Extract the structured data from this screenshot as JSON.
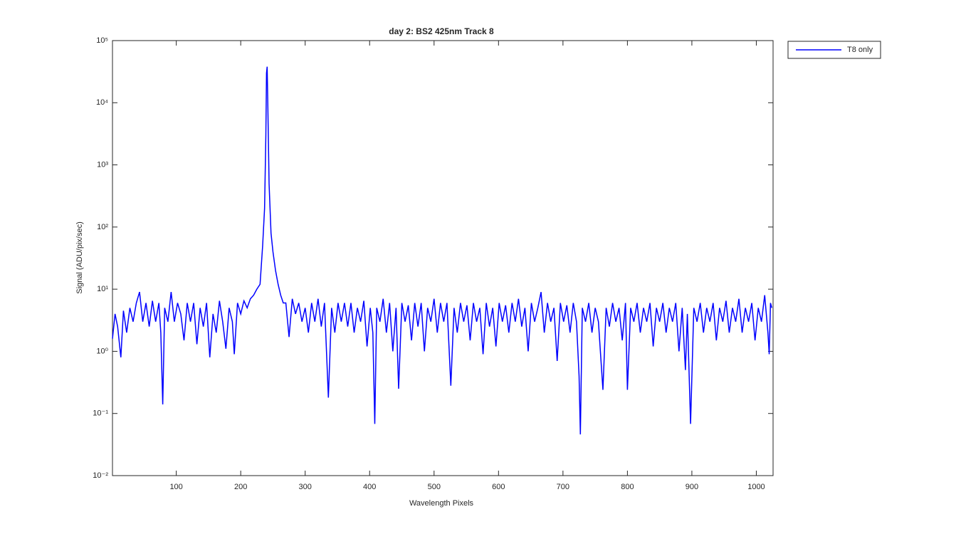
{
  "chart_data": {
    "type": "line",
    "title": "day 2: BS2  425nm  Track 8",
    "x_label": "Wavelength Pixels",
    "y_label": "Signal (ADU/pix/sec)",
    "y_scale": "log",
    "legend": "outside-top-right",
    "xlim": [
      1,
      1026
    ],
    "xticks": [
      100,
      200,
      300,
      400,
      500,
      600,
      700,
      800,
      900,
      1000
    ],
    "ylim": [
      0.01,
      100000
    ],
    "yticks": [
      {
        "value": 0.01,
        "label": "10⁻²"
      },
      {
        "value": 0.1,
        "label": "10⁻¹"
      },
      {
        "value": 1,
        "label": "10⁰"
      },
      {
        "value": 10,
        "label": "10¹"
      },
      {
        "value": 100,
        "label": "10²"
      },
      {
        "value": 1000,
        "label": "10³"
      },
      {
        "value": 10000,
        "label": "10⁴"
      },
      {
        "value": 100000,
        "label": "10⁵"
      }
    ],
    "x": [
      1,
      5,
      9,
      14,
      18,
      23,
      28,
      33,
      38,
      43,
      48,
      53,
      58,
      63,
      68,
      73,
      76,
      79,
      82,
      87,
      92,
      97,
      102,
      107,
      112,
      117,
      122,
      127,
      132,
      137,
      142,
      147,
      152,
      157,
      162,
      167,
      172,
      177,
      182,
      187,
      190,
      195,
      200,
      205,
      210,
      215,
      220,
      225,
      230,
      234,
      237,
      239,
      240,
      241,
      242,
      244,
      247,
      250,
      254,
      258,
      262,
      266,
      270,
      275,
      280,
      285,
      290,
      295,
      300,
      305,
      310,
      315,
      320,
      325,
      330,
      336,
      341,
      346,
      351,
      356,
      361,
      366,
      371,
      376,
      381,
      386,
      391,
      396,
      401,
      405,
      408,
      411,
      416,
      421,
      426,
      431,
      436,
      441,
      445,
      450,
      455,
      460,
      465,
      470,
      475,
      480,
      485,
      490,
      495,
      500,
      505,
      510,
      515,
      520,
      526,
      531,
      536,
      541,
      546,
      551,
      556,
      561,
      566,
      571,
      576,
      581,
      586,
      591,
      596,
      601,
      606,
      611,
      616,
      621,
      626,
      631,
      636,
      641,
      646,
      651,
      656,
      661,
      666,
      671,
      676,
      681,
      686,
      691,
      696,
      701,
      706,
      711,
      716,
      721,
      725,
      727,
      730,
      735,
      740,
      745,
      750,
      755,
      762,
      767,
      772,
      777,
      782,
      787,
      792,
      797,
      800,
      805,
      810,
      815,
      820,
      825,
      830,
      835,
      840,
      845,
      850,
      855,
      860,
      865,
      870,
      875,
      880,
      885,
      890,
      893,
      898,
      903,
      908,
      913,
      918,
      923,
      928,
      933,
      938,
      943,
      948,
      953,
      958,
      963,
      968,
      973,
      978,
      983,
      988,
      993,
      998,
      1003,
      1008,
      1013,
      1018,
      1020,
      1022,
      1024
    ],
    "series": [
      {
        "name": "T8 only",
        "color": "#0000ff",
        "values": [
          1.6,
          4,
          2.5,
          0.8,
          4.5,
          2,
          5,
          3,
          6,
          9,
          3,
          6,
          2.5,
          6.5,
          3,
          6,
          2,
          0.14,
          5,
          3,
          9,
          3,
          6,
          4,
          1.5,
          6,
          3,
          6,
          1.3,
          5,
          2.5,
          6,
          0.8,
          4,
          2,
          6.5,
          3,
          1.1,
          5,
          3,
          0.9,
          6,
          4,
          6.5,
          5,
          7,
          8,
          10,
          12,
          50,
          200,
          3000,
          30000,
          38000,
          10000,
          500,
          80,
          40,
          20,
          12,
          8,
          6,
          6,
          1.7,
          7,
          4,
          6,
          3,
          5,
          2,
          6,
          3,
          7,
          2.5,
          6,
          0.18,
          5,
          2,
          6,
          3,
          6,
          2.5,
          6,
          2,
          5,
          3,
          6.5,
          1.2,
          5,
          2,
          0.068,
          5,
          3,
          7,
          2,
          6,
          1,
          5,
          0.25,
          6,
          3,
          5.5,
          1.5,
          6,
          2.5,
          6,
          1,
          5,
          3,
          7,
          2,
          6,
          3,
          6,
          0.28,
          5,
          2,
          6,
          3,
          5.5,
          1.5,
          6,
          3,
          5,
          0.9,
          6,
          2.5,
          5,
          1.2,
          6,
          3,
          5.5,
          2,
          6,
          3,
          7,
          2.5,
          5,
          1,
          6,
          3,
          5,
          9,
          2,
          6,
          3,
          5,
          0.7,
          6,
          3,
          5.5,
          2,
          6,
          3,
          0.4,
          0.046,
          5,
          3,
          6,
          2,
          5,
          3,
          0.24,
          5,
          2.5,
          6,
          3,
          5,
          1.5,
          6,
          0.24,
          5,
          3,
          6,
          2,
          5,
          3,
          6,
          1.2,
          5,
          3,
          6,
          2,
          5,
          3,
          6,
          1,
          5,
          0.5,
          4,
          0.068,
          5,
          3,
          6,
          2,
          5,
          3,
          6,
          1.5,
          5,
          3,
          6.5,
          2,
          5,
          3,
          7,
          2,
          5,
          3,
          6,
          1.5,
          5,
          3,
          8,
          2,
          0.9,
          6,
          5
        ]
      }
    ]
  }
}
